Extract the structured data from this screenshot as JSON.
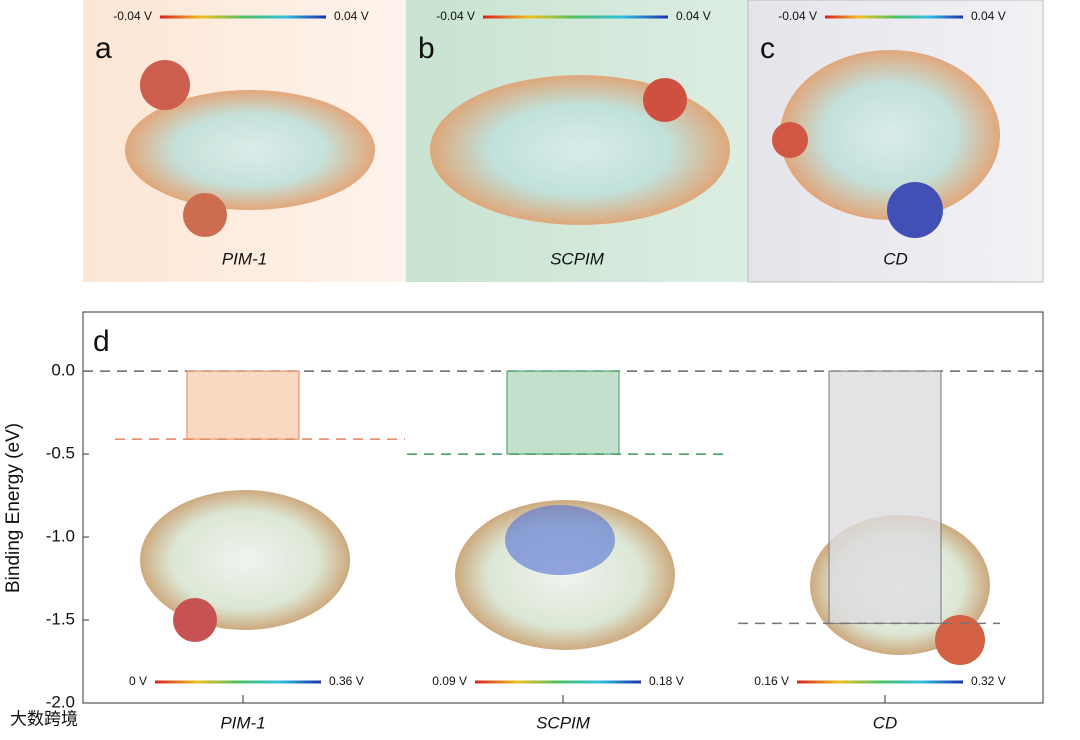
{
  "panels": [
    {
      "letter": "a",
      "name": "PIM-1",
      "scale": [
        "-0.04 V",
        "0.04 V"
      ]
    },
    {
      "letter": "b",
      "name": "SCPIM",
      "scale": [
        "-0.04 V",
        "0.04 V"
      ]
    },
    {
      "letter": "c",
      "name": "CD",
      "scale": [
        "-0.04 V",
        "0.04 V"
      ]
    }
  ],
  "chart_data": {
    "type": "bar",
    "letter": "d",
    "y_label": "Binding Energy (eV)",
    "categories": [
      "PIM-1",
      "SCPIM",
      "CD"
    ],
    "values": [
      -0.41,
      -0.5,
      -1.52
    ],
    "colors": [
      "#f7cfb2",
      "#b3d8bf",
      "#dcdcdf"
    ],
    "edge_colors": [
      "#e0845a",
      "#3b9a5d",
      "#777777"
    ],
    "scales": [
      [
        "0 V",
        "0.36 V"
      ],
      [
        "0.09 V",
        "0.18 V"
      ],
      [
        "0.16 V",
        "0.32 V"
      ]
    ],
    "ylim": [
      -2.0,
      0.35
    ],
    "yticks": [
      {
        "value": 0,
        "label": "0.0"
      },
      -0.5,
      {
        "value": -1,
        "label": "-1.0"
      },
      -1.5,
      {
        "value": -2,
        "label": "-2.0"
      }
    ]
  },
  "watermark": "大数跨境"
}
